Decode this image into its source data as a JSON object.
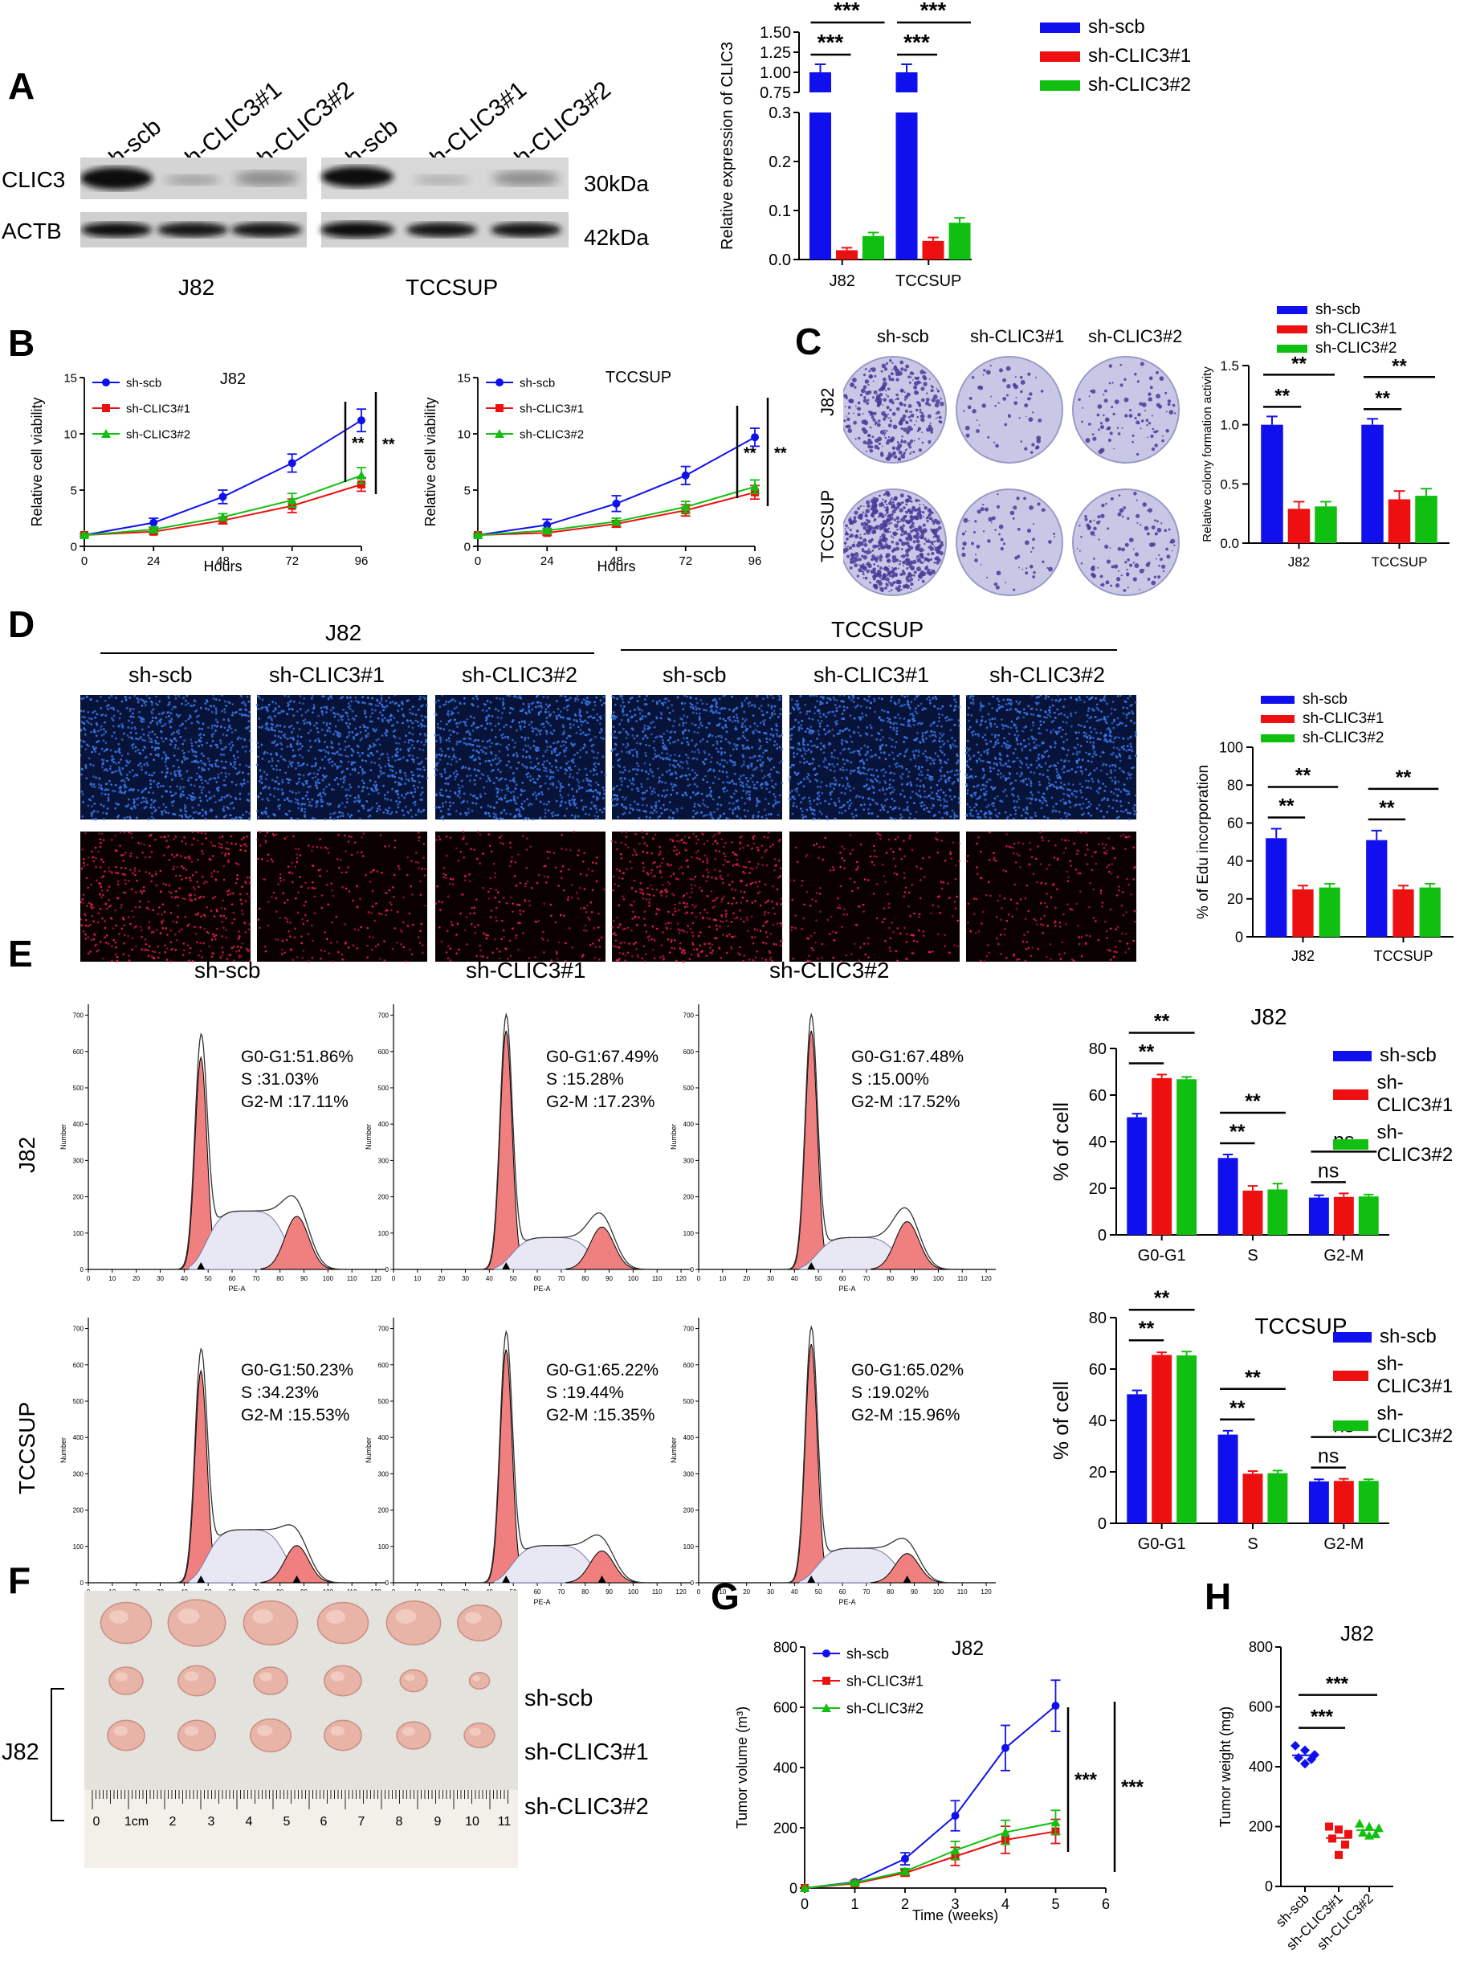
{
  "panel_labels": {
    "A": "A",
    "B": "B",
    "C": "C",
    "D": "D",
    "E": "E",
    "F": "F",
    "G": "G",
    "H": "H"
  },
  "colors": {
    "scb": "#1010ee",
    "c1": "#ee1010",
    "c2": "#10c010",
    "cyto": "#f08080"
  },
  "panelA": {
    "lanes": [
      "sh-scb",
      "sh-CLIC3#1",
      "sh-CLIC3#2",
      "sh-scb",
      "sh-CLIC3#1",
      "sh-CLIC3#2"
    ],
    "rows": [
      "CLIC3",
      "ACTB"
    ],
    "sizes": [
      "30kDa",
      "42kDa"
    ],
    "groups": [
      "J82",
      "TCCSUP"
    ]
  },
  "legend3": [
    "sh-scb",
    "sh-CLIC3#1",
    "sh-CLIC3#2"
  ],
  "panelC": {
    "cols": [
      "sh-scb",
      "sh-CLIC3#1",
      "sh-CLIC3#2"
    ],
    "rows": [
      "J82",
      "TCCSUP"
    ]
  },
  "panelD": {
    "groups": [
      "J82",
      "TCCSUP"
    ],
    "cols": [
      "sh-scb",
      "sh-CLIC3#1",
      "sh-CLIC3#2",
      "sh-scb",
      "sh-CLIC3#1",
      "sh-CLIC3#2"
    ]
  },
  "panelE": {
    "cols": [
      "sh-scb",
      "sh-CLIC3#1",
      "sh-CLIC3#2"
    ],
    "rows": [
      "J82",
      "TCCSUP"
    ],
    "ylabel": "Number",
    "xlabel": "PE-A",
    "stats": [
      [
        "G0-G1:51.86%",
        "S        :31.03%",
        "G2-M :17.11%"
      ],
      [
        "G0-G1:67.49%",
        "S        :15.28%",
        "G2-M :17.23%"
      ],
      [
        "G0-G1:67.48%",
        "S        :15.00%",
        "G2-M :17.52%"
      ],
      [
        "G0-G1:50.23%",
        "S        :34.23%",
        "G2-M :15.53%"
      ],
      [
        "G0-G1:65.22%",
        "S        :19.44%",
        "G2-M :15.35%"
      ],
      [
        "G0-G1:65.02%",
        "S        :19.02%",
        "G2-M :15.96%"
      ]
    ]
  },
  "panelF": {
    "group": "J82",
    "rows": [
      "sh-scb",
      "sh-CLIC3#1",
      "sh-CLIC3#2"
    ],
    "ruler": [
      "0",
      "1cm",
      "2",
      "3",
      "4",
      "5",
      "6",
      "7",
      "8",
      "9",
      "10",
      "11"
    ]
  },
  "chart_data": [
    {
      "id": "A",
      "type": "bar",
      "title": "",
      "ylabel": "Relative expression of CLIC3",
      "categories": [
        "J82",
        "TCCSUP"
      ],
      "series": [
        {
          "name": "sh-scb",
          "values": [
            1.0,
            1.0
          ],
          "err": [
            0.1,
            0.1
          ]
        },
        {
          "name": "sh-CLIC3#1",
          "values": [
            0.019,
            0.038
          ],
          "err": [
            0.005,
            0.007
          ]
        },
        {
          "name": "sh-CLIC3#2",
          "values": [
            0.048,
            0.075
          ],
          "err": [
            0.007,
            0.01
          ]
        }
      ],
      "ticks_low": [
        "0.0",
        "0.1",
        "0.2",
        "0.3"
      ],
      "ticks_high": [
        "0.75",
        "1.00",
        "1.25",
        "1.50"
      ],
      "sig": [
        [
          "***",
          "***"
        ],
        [
          "***",
          "***"
        ]
      ]
    },
    {
      "id": "B1",
      "type": "line",
      "title": "J82",
      "xlabel": "Hours",
      "ylabel": "Relative cell viability",
      "x": [
        0,
        24,
        48,
        72,
        96
      ],
      "xticks": [
        "0",
        "24",
        "48",
        "72",
        "96"
      ],
      "yticks": [
        "0",
        "5",
        "10",
        "15"
      ],
      "ylim": [
        0,
        15
      ],
      "series": [
        {
          "name": "sh-scb",
          "values": [
            1,
            2.1,
            4.4,
            7.4,
            11.2
          ],
          "err": [
            0.1,
            0.4,
            0.6,
            0.8,
            1.0
          ]
        },
        {
          "name": "sh-CLIC3#1",
          "values": [
            1,
            1.3,
            2.3,
            3.6,
            5.5
          ],
          "err": [
            0.1,
            0.2,
            0.3,
            0.6,
            0.6
          ]
        },
        {
          "name": "sh-CLIC3#2",
          "values": [
            1,
            1.5,
            2.6,
            4.1,
            6.3
          ],
          "err": [
            0.1,
            0.2,
            0.3,
            0.6,
            0.7
          ]
        }
      ],
      "sig": [
        "**",
        "**"
      ]
    },
    {
      "id": "B2",
      "type": "line",
      "title": "TCCSUP",
      "xlabel": "Hours",
      "ylabel": "Relative cell viability",
      "x": [
        0,
        24,
        48,
        72,
        96
      ],
      "xticks": [
        "0",
        "24",
        "48",
        "72",
        "96"
      ],
      "yticks": [
        "0",
        "5",
        "10",
        "15"
      ],
      "ylim": [
        0,
        15
      ],
      "series": [
        {
          "name": "sh-scb",
          "values": [
            1,
            1.9,
            3.8,
            6.3,
            9.7
          ],
          "err": [
            0.1,
            0.5,
            0.7,
            0.8,
            0.8
          ]
        },
        {
          "name": "sh-CLIC3#1",
          "values": [
            1,
            1.2,
            2.0,
            3.2,
            4.8
          ],
          "err": [
            0.1,
            0.2,
            0.3,
            0.5,
            0.6
          ]
        },
        {
          "name": "sh-CLIC3#2",
          "values": [
            1,
            1.4,
            2.2,
            3.5,
            5.3
          ],
          "err": [
            0.1,
            0.2,
            0.3,
            0.5,
            0.6
          ]
        }
      ],
      "sig": [
        "**",
        "**"
      ]
    },
    {
      "id": "C",
      "type": "bar",
      "ylabel": "Relative colony formation activity",
      "categories": [
        "J82",
        "TCCSUP"
      ],
      "yticks": [
        "0.0",
        "0.5",
        "1.0",
        "1.5"
      ],
      "ylim": [
        0,
        1.5
      ],
      "series": [
        {
          "name": "sh-scb",
          "values": [
            1.0,
            1.0
          ],
          "err": [
            0.07,
            0.05
          ]
        },
        {
          "name": "sh-CLIC3#1",
          "values": [
            0.29,
            0.37
          ],
          "err": [
            0.06,
            0.07
          ]
        },
        {
          "name": "sh-CLIC3#2",
          "values": [
            0.31,
            0.4
          ],
          "err": [
            0.04,
            0.06
          ]
        }
      ],
      "sig": [
        [
          "**",
          "**"
        ],
        [
          "**",
          "**"
        ]
      ]
    },
    {
      "id": "D",
      "type": "bar",
      "ylabel": "% of Edu incorporation",
      "categories": [
        "J82",
        "TCCSUP"
      ],
      "yticks": [
        "0",
        "20",
        "40",
        "60",
        "80",
        "100"
      ],
      "ylim": [
        0,
        100
      ],
      "series": [
        {
          "name": "sh-scb",
          "values": [
            52,
            51
          ],
          "err": [
            5,
            5
          ]
        },
        {
          "name": "sh-CLIC3#1",
          "values": [
            25,
            25
          ],
          "err": [
            2,
            2
          ]
        },
        {
          "name": "sh-CLIC3#2",
          "values": [
            26,
            26
          ],
          "err": [
            2,
            2
          ]
        }
      ],
      "sig": [
        [
          "**",
          "**"
        ],
        [
          "**",
          "**"
        ]
      ]
    },
    {
      "id": "E1",
      "type": "bar",
      "title": "J82",
      "ylabel": "% of cell",
      "categories": [
        "G0-G1",
        "S",
        "G2-M"
      ],
      "yticks": [
        "0",
        "20",
        "40",
        "60",
        "80"
      ],
      "ylim": [
        0,
        80
      ],
      "series": [
        {
          "name": "sh-scb",
          "values": [
            50.5,
            33,
            16
          ],
          "err": [
            1.5,
            1.5,
            1
          ]
        },
        {
          "name": "sh-CLIC3#1",
          "values": [
            67.3,
            19,
            16.3
          ],
          "err": [
            1.5,
            2,
            1.5
          ]
        },
        {
          "name": "sh-CLIC3#2",
          "values": [
            66.8,
            19.5,
            16.5
          ],
          "err": [
            1,
            2.5,
            0.8
          ]
        }
      ],
      "sig": [
        [
          "**",
          "**"
        ],
        [
          "**",
          "**"
        ],
        [
          "ns",
          "ns"
        ]
      ]
    },
    {
      "id": "E2",
      "type": "bar",
      "title": "TCCSUP",
      "ylabel": "% of cell",
      "categories": [
        "G0-G1",
        "S",
        "G2-M"
      ],
      "yticks": [
        "0",
        "20",
        "40",
        "60",
        "80"
      ],
      "ylim": [
        0,
        80
      ],
      "series": [
        {
          "name": "sh-scb",
          "values": [
            50.2,
            34.5,
            16.3
          ],
          "err": [
            1.5,
            1.5,
            0.8
          ]
        },
        {
          "name": "sh-CLIC3#1",
          "values": [
            65.5,
            19.3,
            16.5
          ],
          "err": [
            1,
            1,
            0.8
          ]
        },
        {
          "name": "sh-CLIC3#2",
          "values": [
            65.3,
            19.5,
            16.5
          ],
          "err": [
            1.5,
            1,
            0.6
          ]
        }
      ],
      "sig": [
        [
          "**",
          "**"
        ],
        [
          "**",
          "**"
        ],
        [
          "ns",
          "ns"
        ]
      ]
    },
    {
      "id": "G",
      "type": "line",
      "title": "J82",
      "xlabel": "Time (weeks)",
      "ylabel": "Tumor volume (m³)",
      "x": [
        0,
        1,
        2,
        3,
        4,
        5
      ],
      "xticks": [
        "0",
        "1",
        "2",
        "3",
        "4",
        "5",
        "6"
      ],
      "yticks": [
        "0",
        "200",
        "400",
        "600",
        "800"
      ],
      "ylim": [
        0,
        800
      ],
      "xlim": [
        0,
        6
      ],
      "series": [
        {
          "name": "sh-scb",
          "values": [
            0,
            20,
            97,
            240,
            465,
            605
          ],
          "err": [
            0,
            5,
            20,
            50,
            75,
            85
          ]
        },
        {
          "name": "sh-CLIC3#1",
          "values": [
            0,
            15,
            50,
            105,
            160,
            188
          ],
          "err": [
            0,
            5,
            10,
            30,
            45,
            40
          ]
        },
        {
          "name": "sh-CLIC3#2",
          "values": [
            0,
            18,
            55,
            125,
            185,
            218
          ],
          "err": [
            0,
            5,
            10,
            30,
            40,
            40
          ]
        }
      ],
      "sig": [
        "***",
        "***"
      ]
    },
    {
      "id": "H",
      "type": "scatter",
      "title": "J82",
      "ylabel": "Tumor weight (mg)",
      "categories": [
        "sh-scb",
        "sh-CLIC3#1",
        "sh-CLIC3#2"
      ],
      "yticks": [
        "0",
        "200",
        "400",
        "600",
        "800"
      ],
      "ylim": [
        0,
        800
      ],
      "series": [
        {
          "name": "sh-scb",
          "values": [
            470,
            455,
            440,
            430,
            425,
            410
          ]
        },
        {
          "name": "sh-CLIC3#1",
          "values": [
            200,
            190,
            175,
            160,
            140,
            105
          ]
        },
        {
          "name": "sh-CLIC3#2",
          "values": [
            210,
            200,
            195,
            180,
            175,
            170
          ]
        }
      ],
      "sig": [
        "***",
        "***"
      ]
    }
  ]
}
